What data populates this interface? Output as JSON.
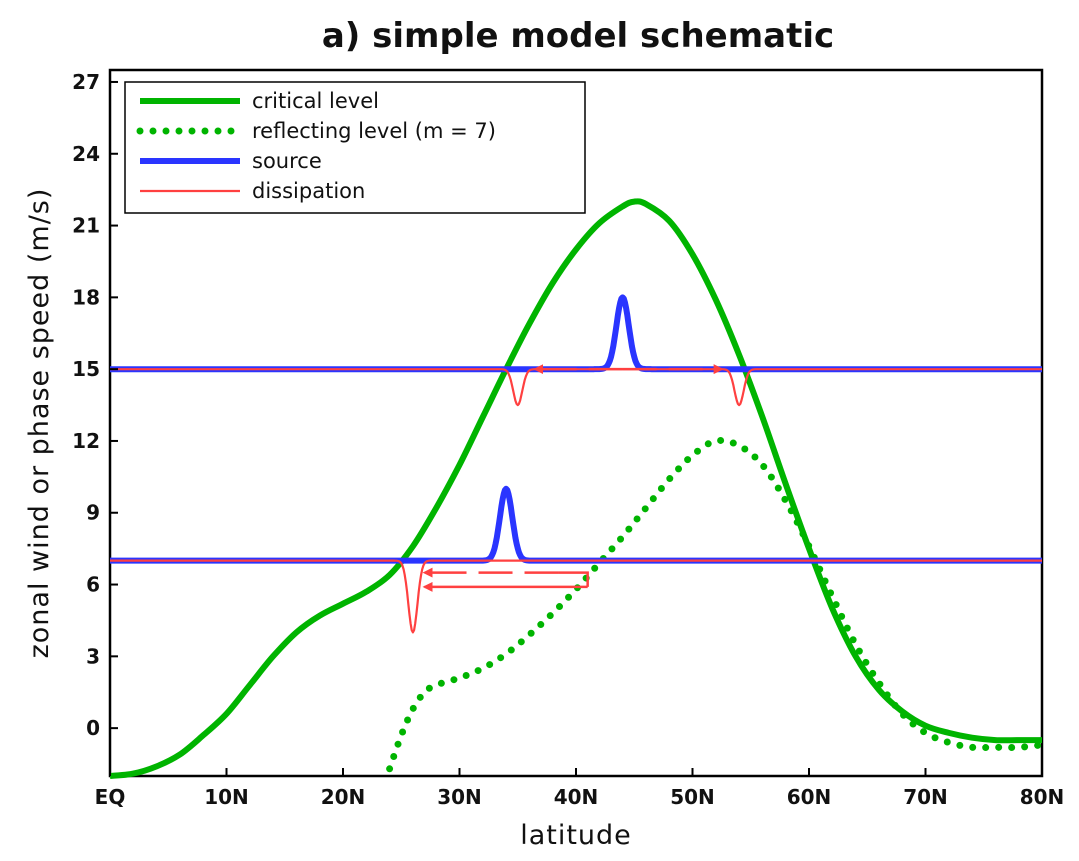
{
  "chart_data": {
    "type": "line",
    "title": "a) simple model schematic",
    "xlabel": "latitude",
    "ylabel": "zonal wind or phase speed (m/s)",
    "xlim": [
      0,
      80
    ],
    "ylim": [
      -2,
      27.5
    ],
    "x_ticks": [
      {
        "value": 0,
        "label": "EQ"
      },
      {
        "value": 10,
        "label": "10N"
      },
      {
        "value": 20,
        "label": "20N"
      },
      {
        "value": 30,
        "label": "30N"
      },
      {
        "value": 40,
        "label": "40N"
      },
      {
        "value": 50,
        "label": "50N"
      },
      {
        "value": 60,
        "label": "60N"
      },
      {
        "value": 70,
        "label": "70N"
      },
      {
        "value": 80,
        "label": "80N"
      }
    ],
    "y_ticks": [
      0,
      3,
      6,
      9,
      12,
      15,
      18,
      21,
      24,
      27
    ],
    "grid": false,
    "legend_position": "top-left",
    "series": [
      {
        "name": "critical level",
        "style": "solid",
        "color": "#00b400",
        "x": [
          0,
          2,
          4,
          6,
          8,
          10,
          12,
          14,
          16,
          18,
          20,
          22,
          24,
          26,
          28,
          30,
          32,
          34,
          36,
          38,
          40,
          42,
          44,
          45,
          46,
          48,
          50,
          52,
          54,
          56,
          58,
          60,
          62,
          64,
          66,
          68,
          70,
          72,
          74,
          76,
          78,
          80
        ],
        "y": [
          -2,
          -1.9,
          -1.6,
          -1.1,
          -0.3,
          0.6,
          1.8,
          3.0,
          4.0,
          4.7,
          5.2,
          5.7,
          6.4,
          7.6,
          9.2,
          11.0,
          13.0,
          15.0,
          16.9,
          18.6,
          20.0,
          21.1,
          21.8,
          22.0,
          21.9,
          21.2,
          19.8,
          17.9,
          15.6,
          13.0,
          10.2,
          7.5,
          5.0,
          3.0,
          1.6,
          0.7,
          0.1,
          -0.2,
          -0.4,
          -0.5,
          -0.5,
          -0.5
        ]
      },
      {
        "name": "reflecting level (m = 7)",
        "style": "dotted",
        "color": "#00b400",
        "x": [
          24,
          25,
          26,
          27,
          28,
          30,
          32,
          34,
          36,
          38,
          40,
          42,
          44,
          46,
          48,
          50,
          52,
          54,
          56,
          58,
          60,
          62,
          64,
          66,
          68,
          70,
          72,
          74,
          76,
          78,
          80
        ],
        "y": [
          -1.7,
          -0.3,
          0.8,
          1.5,
          1.8,
          2.1,
          2.5,
          3.1,
          3.9,
          4.8,
          5.8,
          6.9,
          8.0,
          9.2,
          10.4,
          11.4,
          12.0,
          11.8,
          11.0,
          9.5,
          7.6,
          5.5,
          3.5,
          1.9,
          0.6,
          -0.2,
          -0.6,
          -0.8,
          -0.8,
          -0.8,
          -0.7
        ]
      },
      {
        "name": "source",
        "style": "solid",
        "color": "#2a35ff",
        "lines": [
          {
            "y": 15,
            "peak_x": 44,
            "peak_y": 18
          },
          {
            "y": 7,
            "peak_x": 34,
            "peak_y": 10
          }
        ]
      },
      {
        "name": "dissipation",
        "style": "thin",
        "color": "#ff4040",
        "lines": [
          {
            "y": 15,
            "dips": [
              {
                "x": 35,
                "min": 13.5
              },
              {
                "x": 54,
                "min": 13.5
              }
            ]
          },
          {
            "y": 7,
            "dips": [
              {
                "x": 26,
                "min": 4.0
              }
            ]
          }
        ]
      }
    ],
    "arrows": [
      {
        "y": 15,
        "x_from": 44,
        "x_to": 36.5,
        "style": "dashed"
      },
      {
        "y": 15,
        "x_from": 44,
        "x_to": 52.5,
        "style": "dashed"
      },
      {
        "y": 6.5,
        "x_from": 38.5,
        "x_to": 27,
        "style": "dashed"
      },
      {
        "y": 5.9,
        "x_from": 41,
        "x_to": 27,
        "style": "solid"
      }
    ],
    "colors": {
      "critical": "#00b400",
      "source": "#2a35ff",
      "dissipation": "#ff4040"
    }
  }
}
